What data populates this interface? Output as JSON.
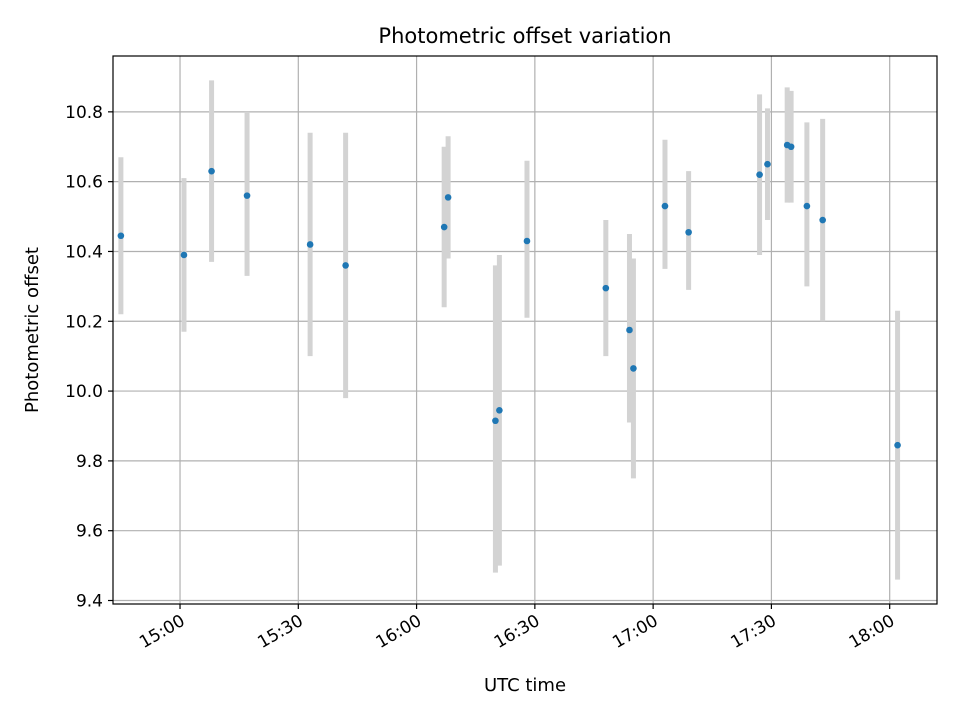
{
  "chart_data": {
    "type": "scatter",
    "title": "Photometric offset variation",
    "xlabel": "UTC time",
    "ylabel": "Photometric offset",
    "x_tick_labels": [
      "15:00",
      "15:30",
      "16:00",
      "16:30",
      "17:00",
      "17:30",
      "18:00"
    ],
    "y_tick_labels": [
      "9.4",
      "9.6",
      "9.8",
      "10.0",
      "10.2",
      "10.4",
      "10.6",
      "10.8"
    ],
    "xlim": [
      "14:43",
      "18:12"
    ],
    "ylim": [
      9.39,
      10.96
    ],
    "grid": true,
    "error_bars": true,
    "colors": {
      "point": "#1f77b4",
      "error_bar": "#d3d3d3",
      "grid": "#b0b0b0"
    },
    "points": [
      {
        "x": "14:45",
        "y": 10.445,
        "ylo": 10.22,
        "yhi": 10.67
      },
      {
        "x": "15:01",
        "y": 10.39,
        "ylo": 10.17,
        "yhi": 10.61
      },
      {
        "x": "15:08",
        "y": 10.63,
        "ylo": 10.37,
        "yhi": 10.89
      },
      {
        "x": "15:17",
        "y": 10.56,
        "ylo": 10.33,
        "yhi": 10.8
      },
      {
        "x": "15:33",
        "y": 10.42,
        "ylo": 10.1,
        "yhi": 10.74
      },
      {
        "x": "15:42",
        "y": 10.36,
        "ylo": 9.98,
        "yhi": 10.74
      },
      {
        "x": "16:07",
        "y": 10.47,
        "ylo": 10.24,
        "yhi": 10.7
      },
      {
        "x": "16:08",
        "y": 10.555,
        "ylo": 10.38,
        "yhi": 10.73
      },
      {
        "x": "16:20",
        "y": 9.915,
        "ylo": 9.48,
        "yhi": 10.36
      },
      {
        "x": "16:21",
        "y": 9.945,
        "ylo": 9.5,
        "yhi": 10.39
      },
      {
        "x": "16:28",
        "y": 10.43,
        "ylo": 10.21,
        "yhi": 10.66
      },
      {
        "x": "16:48",
        "y": 10.295,
        "ylo": 10.1,
        "yhi": 10.49
      },
      {
        "x": "16:54",
        "y": 10.175,
        "ylo": 9.91,
        "yhi": 10.45
      },
      {
        "x": "16:55",
        "y": 10.065,
        "ylo": 9.75,
        "yhi": 10.38
      },
      {
        "x": "17:03",
        "y": 10.53,
        "ylo": 10.35,
        "yhi": 10.72
      },
      {
        "x": "17:09",
        "y": 10.455,
        "ylo": 10.29,
        "yhi": 10.63
      },
      {
        "x": "17:27",
        "y": 10.62,
        "ylo": 10.39,
        "yhi": 10.85
      },
      {
        "x": "17:29",
        "y": 10.65,
        "ylo": 10.49,
        "yhi": 10.81
      },
      {
        "x": "17:34",
        "y": 10.705,
        "ylo": 10.54,
        "yhi": 10.87
      },
      {
        "x": "17:35",
        "y": 10.7,
        "ylo": 10.54,
        "yhi": 10.86
      },
      {
        "x": "17:39",
        "y": 10.53,
        "ylo": 10.3,
        "yhi": 10.77
      },
      {
        "x": "17:43",
        "y": 10.49,
        "ylo": 10.2,
        "yhi": 10.78
      },
      {
        "x": "18:02",
        "y": 9.845,
        "ylo": 9.46,
        "yhi": 10.23
      }
    ]
  }
}
